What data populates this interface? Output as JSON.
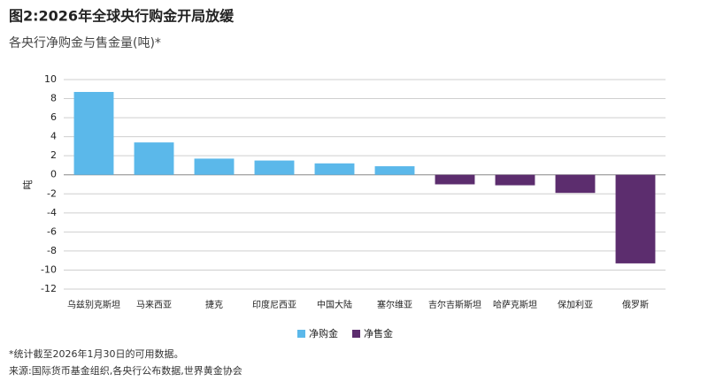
{
  "chart_data": {
    "type": "bar",
    "title": "图2:2026年全球央行购金开局放缓",
    "subtitle": "各央行净购金与售金量(吨)*",
    "y_label": "吨",
    "categories": [
      "乌兹别克斯坦",
      "马来西亚",
      "捷克",
      "印度尼西亚",
      "中国大陆",
      "塞尔维亚",
      "吉尔吉斯斯坦",
      "哈萨克斯坦",
      "保加利亚",
      "俄罗斯"
    ],
    "series": [
      {
        "name": "净购金",
        "color": "#5bb8ea",
        "values": [
          8.7,
          3.4,
          1.7,
          1.5,
          1.2,
          0.9,
          null,
          null,
          null,
          null
        ]
      },
      {
        "name": "净售金",
        "color": "#5c2d6e",
        "values": [
          null,
          null,
          null,
          null,
          null,
          null,
          -1.0,
          -1.1,
          -1.9,
          -9.3
        ]
      }
    ],
    "ylim": [
      -12,
      10
    ],
    "yticks": [
      -12,
      -10,
      -8,
      -6,
      -4,
      -2,
      0,
      2,
      4,
      6,
      8,
      10
    ],
    "grid": true,
    "legend": "bottom",
    "notes": [
      "*统计截至2026年1月30日的可用数据。",
      "来源:国际货币基金组织,各央行公布数据,世界黄金协会"
    ]
  }
}
